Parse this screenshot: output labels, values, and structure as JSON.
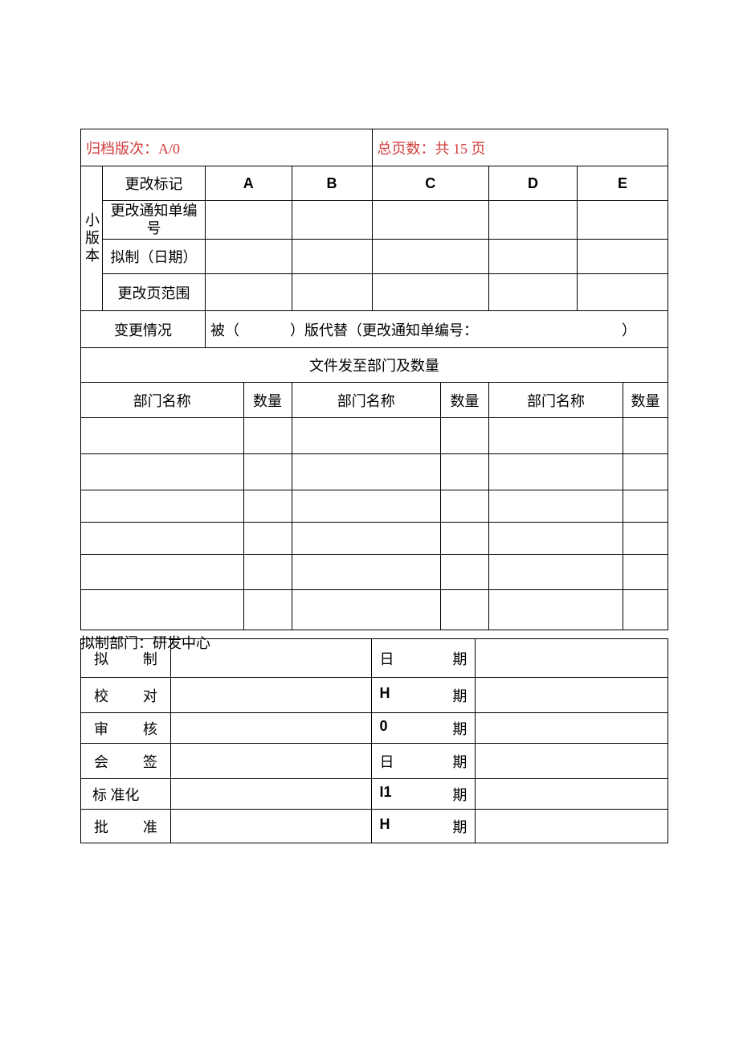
{
  "header": {
    "archive_version_label": "归档版次：",
    "archive_version_value": "A/0",
    "total_pages_label": "总页数：共",
    "total_pages_value": "15",
    "total_pages_suffix": "页"
  },
  "minor_version": {
    "sidebar_label": "小版本",
    "rows": {
      "change_mark": "更改标记",
      "change_notice_no": "更改通知单编号",
      "drafted_date": "拟制（日期）",
      "change_page_range": "更改页范围"
    },
    "columns": [
      "A",
      "B",
      "C",
      "D",
      "E"
    ]
  },
  "change_status": {
    "label": "变更情况",
    "text_prefix": "被（",
    "text_mid": "）版代替（更改通知单编号：",
    "text_suffix": "）"
  },
  "distribution": {
    "title": "文件发至部门及数量",
    "dept_label": "部门名称",
    "qty_label": "数量"
  },
  "draft_dept": "拟制部门：研发中心",
  "signoff": {
    "rows": [
      {
        "role_a": "拟",
        "role_b": "制",
        "date_a": "日",
        "date_b": "期"
      },
      {
        "role_a": "校",
        "role_b": "对",
        "date_a": "H",
        "date_b": "期",
        "date_a_arial": true
      },
      {
        "role_a": "审",
        "role_b": "核",
        "date_a": "0",
        "date_b": "期",
        "date_a_arial": true
      },
      {
        "role_a": "会",
        "role_b": "签",
        "date_a": "日",
        "date_b": "期"
      },
      {
        "role_full": "标 准化",
        "date_a": "I1",
        "date_b": "期",
        "date_a_arial": true
      },
      {
        "role_a": "批",
        "role_b": "准",
        "date_a": "H",
        "date_b": "期",
        "date_a_arial": true
      }
    ]
  },
  "layout": {
    "table1_width": 732,
    "table2_width": 732,
    "colors": {
      "red": "#d13b3b",
      "black": "#000000",
      "bg": "#ffffff"
    }
  }
}
